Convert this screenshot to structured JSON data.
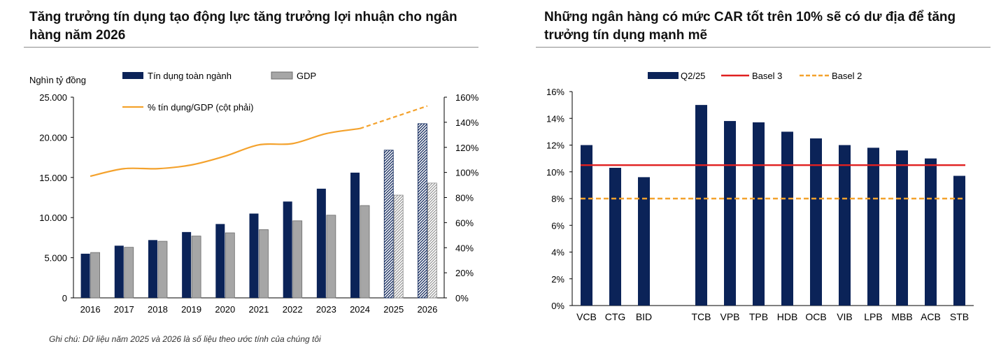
{
  "left_panel": {
    "title": "Tăng trưởng tín dụng tạo động lực tăng trưởng lợi nhuận cho ngân hàng năm 2026",
    "note": "Ghi chú: Dữ liệu năm 2025 và 2026 là số liệu theo ước tính của chúng tôi"
  },
  "right_panel": {
    "title": "Những ngân hàng có mức CAR tốt trên 10% sẽ có dư địa để tăng trưởng tín dụng mạnh mẽ"
  },
  "chart_data": [
    {
      "type": "bar",
      "ylabel": "Nghìn tỷ đồng",
      "categories": [
        "2016",
        "2017",
        "2018",
        "2019",
        "2020",
        "2021",
        "2022",
        "2023",
        "2024",
        "2025",
        "2026"
      ],
      "estimated_from": "2025",
      "ylim": [
        0,
        25000
      ],
      "yticks": [
        "0",
        "5.000",
        "10.000",
        "15.000",
        "20.000",
        "25.000"
      ],
      "y2lim": [
        0,
        160
      ],
      "y2ticks": [
        "0%",
        "20%",
        "40%",
        "60%",
        "80%",
        "100%",
        "120%",
        "140%",
        "160%"
      ],
      "series": [
        {
          "name": "Tín dụng toàn ngành",
          "axis": "left",
          "color": "#0b2358",
          "values": [
            5500,
            6500,
            7200,
            8200,
            9200,
            10500,
            12000,
            13600,
            15600,
            18400,
            21700
          ]
        },
        {
          "name": "GDP",
          "axis": "left",
          "color": "#a6a6a6",
          "values": [
            5650,
            6300,
            7050,
            7700,
            8100,
            8500,
            9600,
            10300,
            11500,
            12800,
            14300
          ]
        },
        {
          "name": "% tín dụng/GDP (cột phải)",
          "type": "line",
          "axis": "right",
          "color": "#f4a22d",
          "values": [
            97,
            103,
            103,
            106,
            113,
            122,
            123,
            131,
            135,
            144,
            153
          ]
        }
      ],
      "legend": "top-center"
    },
    {
      "type": "bar",
      "categories": [
        "VCB",
        "CTG",
        "BID",
        "TCB",
        "VPB",
        "TPB",
        "HDB",
        "OCB",
        "VIB",
        "LPB",
        "MBB",
        "ACB",
        "STB"
      ],
      "ylim": [
        0,
        16
      ],
      "yticks": [
        "0%",
        "2%",
        "4%",
        "6%",
        "8%",
        "10%",
        "12%",
        "14%",
        "16%"
      ],
      "series": [
        {
          "name": "Q2/25",
          "color": "#0b2358",
          "values": [
            12.0,
            10.3,
            9.6,
            15.0,
            13.8,
            13.7,
            13.0,
            12.5,
            12.0,
            11.8,
            11.6,
            11.0,
            9.7
          ]
        }
      ],
      "reference_lines": [
        {
          "name": "Basel 3",
          "value": 10.5,
          "color": "#e02020",
          "style": "solid"
        },
        {
          "name": "Basel 2",
          "value": 8.0,
          "color": "#f4a22d",
          "style": "dashed"
        }
      ],
      "legend": "top-center"
    }
  ]
}
